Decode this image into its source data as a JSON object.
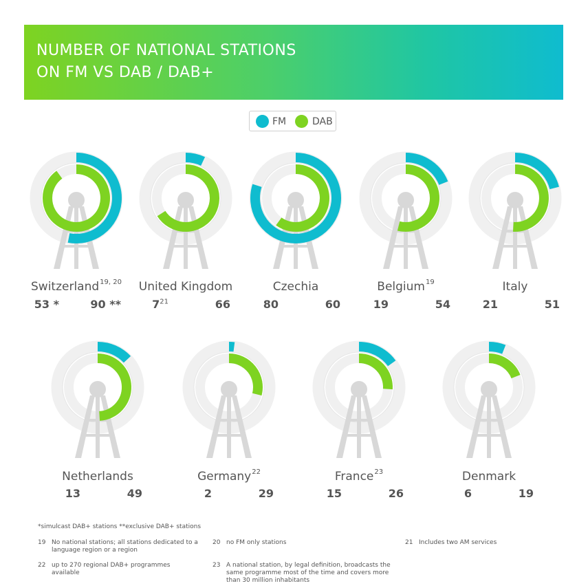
{
  "header": {
    "title_line1": "NUMBER OF NATIONAL STATIONS",
    "title_line2": "ON FM VS DAB / DAB+"
  },
  "colors": {
    "fm": "#0fbccf",
    "dab": "#7ed321",
    "track": "#f0f0f0",
    "tower": "#d8d8d8"
  },
  "legend": {
    "fm_label": "FM",
    "dab_label": "DAB"
  },
  "chart_data": {
    "type": "radial-bar",
    "title": "NUMBER OF NATIONAL STATIONS ON FM VS DAB / DAB+",
    "max_value": 100,
    "series": [
      "FM",
      "DAB"
    ],
    "countries": [
      {
        "name": "Switzerland",
        "note": "19, 20",
        "fm": 53,
        "fm_label": "53 *",
        "fm_note": "",
        "dab": 90,
        "dab_label": "90 **"
      },
      {
        "name": "United Kingdom",
        "note": "",
        "fm": 7,
        "fm_label": "7",
        "fm_note": "21",
        "dab": 66,
        "dab_label": "66"
      },
      {
        "name": "Czechia",
        "note": "",
        "fm": 80,
        "fm_label": "80",
        "fm_note": "",
        "dab": 60,
        "dab_label": "60"
      },
      {
        "name": "Belgium",
        "note": "19",
        "fm": 19,
        "fm_label": "19",
        "fm_note": "",
        "dab": 54,
        "dab_label": "54"
      },
      {
        "name": "Italy",
        "note": "",
        "fm": 21,
        "fm_label": "21",
        "fm_note": "",
        "dab": 51,
        "dab_label": "51"
      },
      {
        "name": "Netherlands",
        "note": "",
        "fm": 13,
        "fm_label": "13",
        "fm_note": "",
        "dab": 49,
        "dab_label": "49"
      },
      {
        "name": "Germany",
        "note": "22",
        "fm": 2,
        "fm_label": "2",
        "fm_note": "",
        "dab": 29,
        "dab_label": "29"
      },
      {
        "name": "France",
        "note": "23",
        "fm": 15,
        "fm_label": "15",
        "fm_note": "",
        "dab": 26,
        "dab_label": "26"
      },
      {
        "name": "Denmark",
        "note": "",
        "fm": 6,
        "fm_label": "6",
        "fm_note": "",
        "dab": 19,
        "dab_label": "19"
      }
    ]
  },
  "footnotes": {
    "legend_note": "*simulcast DAB+ stations  **exclusive DAB+ stations",
    "items": [
      {
        "num": "19",
        "text": "No national stations; all stations dedicated to a language region or a region"
      },
      {
        "num": "20",
        "text": "no FM only stations"
      },
      {
        "num": "21",
        "text": "Includes two AM services"
      },
      {
        "num": "22",
        "text": "up to 270 regional DAB+ programmes available"
      },
      {
        "num": "23",
        "text": "A national station, by legal definition, broadcasts the same programme most of the time and covers more than 30 million inhabitants"
      }
    ]
  }
}
